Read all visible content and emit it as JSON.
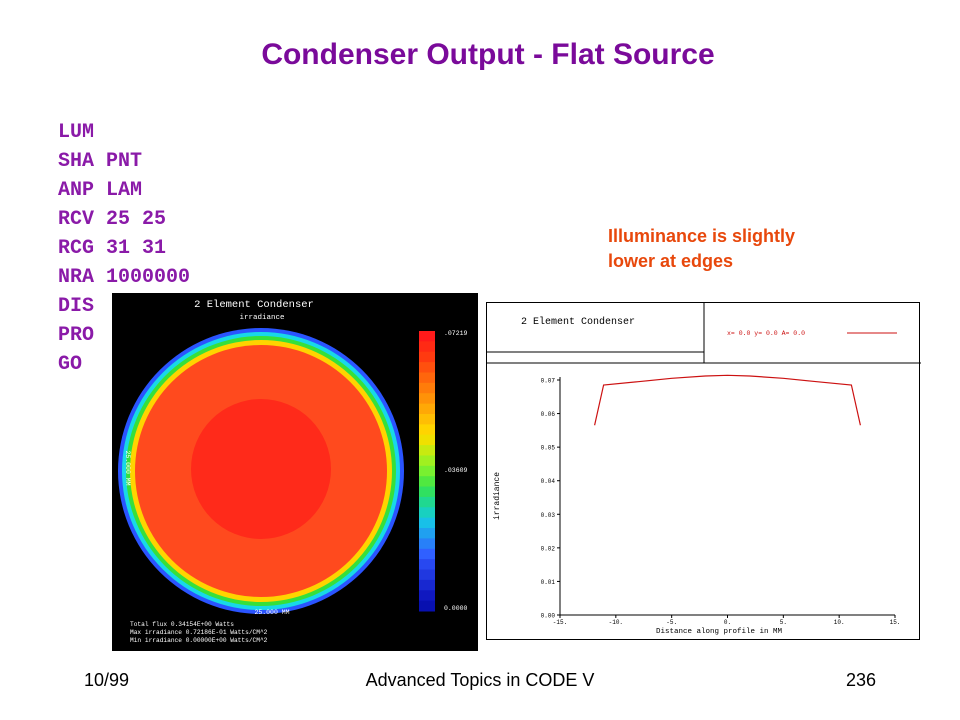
{
  "slide": {
    "title": "Condenser Output - Flat Source",
    "commands": [
      "LUM",
      "SHA PNT",
      "ANP LAM",
      "RCV 25 25",
      "RCG 31 31",
      "NRA 1000000",
      "DIS",
      "PRO",
      "GO"
    ],
    "note_line1": "Illuminance is slightly",
    "note_line2": "lower at edges",
    "footer_left": "10/99",
    "footer_center": "Advanced Topics in CODE V",
    "footer_right": "236"
  },
  "irradiance_map": {
    "title": "2 Element Condenser",
    "subtitle": "irradiance",
    "side_label": "25.000 MM",
    "bottom_label": "25.000 MM",
    "scale_max": ".07219",
    "scale_mid": ".03609",
    "scale_min": "0.0000",
    "stat_flux": "Total flux  0.34154E+00 Watts",
    "stat_max": "Max irradiance  0.72186E-01 Watts/CM^2",
    "stat_min": "Min irradiance  0.00000E+00 Watts/CM^2",
    "colors": {
      "background": "#000000",
      "outer": "#ff4a1e",
      "center": "#ff2a1a",
      "edge_yellow": "#ffd400",
      "edge_green": "#36e03a",
      "edge_cyan": "#18d8e8",
      "edge_blue": "#2a54ff"
    }
  },
  "profile_plot": {
    "header": "2 Element Condenser",
    "legend_text": "x=  0.0 y=  0.0 A=  0.0",
    "line_color": "#cc1111"
  },
  "chart_data": {
    "type": "line",
    "title": "",
    "xlabel": "Distance along profile in MM",
    "ylabel": "irradiance",
    "xlim": [
      -15,
      15
    ],
    "ylim": [
      0,
      0.07
    ],
    "x_ticks": [
      "-15.",
      "-10.",
      "-5.",
      "0.",
      "5.",
      "10.",
      "15."
    ],
    "y_ticks": [
      "0.00",
      "0.01",
      "0.02",
      "0.03",
      "0.04",
      "0.05",
      "0.06",
      "0.07"
    ],
    "series": [
      {
        "x": [
          -11.9,
          -11.1,
          -8,
          -5,
          -2,
          0,
          2,
          5,
          8,
          11.1,
          11.9
        ],
        "y": [
          0.0565,
          0.0685,
          0.0695,
          0.0705,
          0.0712,
          0.0714,
          0.0712,
          0.0705,
          0.0695,
          0.0685,
          0.0565
        ]
      }
    ]
  }
}
